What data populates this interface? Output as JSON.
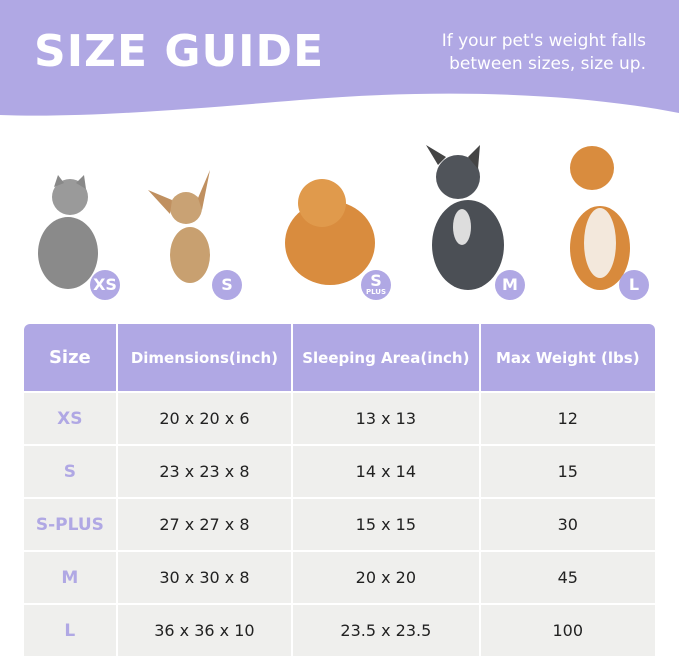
{
  "header": {
    "title": "SIZE GUIDE",
    "note_line1": "If your pet's weight falls",
    "note_line2": "between sizes, size up."
  },
  "colors": {
    "accent": "#b0a8e4",
    "row_bg": "#efefed"
  },
  "pets": [
    {
      "animal": "gray cat",
      "badge": "XS",
      "badge_sub": ""
    },
    {
      "animal": "chihuahua",
      "badge": "S",
      "badge_sub": ""
    },
    {
      "animal": "pomeranian",
      "badge": "S",
      "badge_sub": "PLUS"
    },
    {
      "animal": "french bulldog",
      "badge": "M",
      "badge_sub": ""
    },
    {
      "animal": "shiba inu",
      "badge": "L",
      "badge_sub": ""
    }
  ],
  "table": {
    "headers": [
      "Size",
      "Dimensions(inch)",
      "Sleeping Area(inch)",
      "Max Weight (lbs)"
    ],
    "rows": [
      [
        "XS",
        "20 x 20 x 6",
        "13 x 13",
        "12"
      ],
      [
        "S",
        "23 x 23 x 8",
        "14 x 14",
        "15"
      ],
      [
        "S-PLUS",
        "27 x 27 x 8",
        "15 x 15",
        "30"
      ],
      [
        "M",
        "30 x 30 x 8",
        "20 x 20",
        "45"
      ],
      [
        "L",
        "36 x 36 x 10",
        "23.5 x 23.5",
        "100"
      ]
    ]
  }
}
